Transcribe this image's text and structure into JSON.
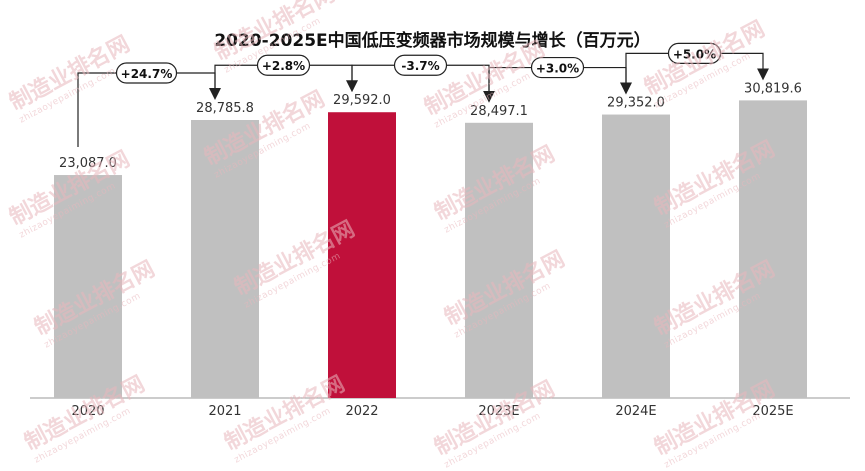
{
  "chart_data": {
    "type": "bar",
    "title": "2020-2025E中国低压变频器市场规模与增长（百万元）",
    "categories": [
      "2020",
      "2021",
      "2022",
      "2023E",
      "2024E",
      "2025E"
    ],
    "values": [
      23087.0,
      28785.8,
      29592.0,
      28497.1,
      29352.0,
      30819.6
    ],
    "value_labels": [
      "23,087.0",
      "28,785.8",
      "29,592.0",
      "28,497.1",
      "29,352.0",
      "30,819.6"
    ],
    "growth_labels": [
      "+24.7%",
      "+2.8%",
      "-3.7%",
      "+3.0%",
      "+5.0%"
    ],
    "highlight_index": 2,
    "colors": {
      "bar": "#c0c0c0",
      "highlight": "#c0103a",
      "arrow": "#222222",
      "axis": "#999999"
    },
    "ylim": [
      0,
      35000
    ],
    "grid": false,
    "legend": "none"
  },
  "watermark": {
    "text": "制造业排名网",
    "sub": "zhizaoyepaiming.com"
  }
}
